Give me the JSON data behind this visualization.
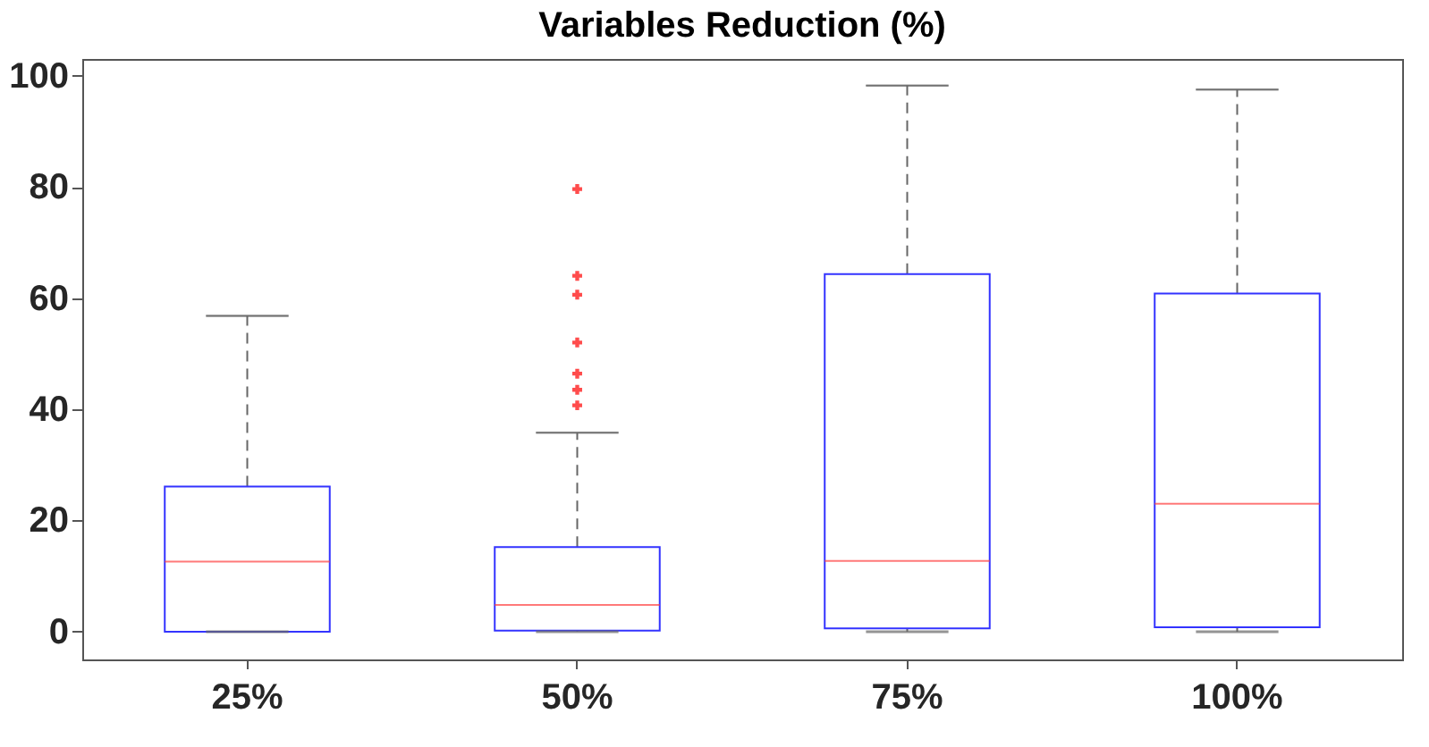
{
  "chart_data": {
    "type": "box",
    "title": "Variables Reduction (%)",
    "categories": [
      "25%",
      "50%",
      "75%",
      "100%"
    ],
    "boxes": [
      {
        "low": 0,
        "q1": 0,
        "median": 12.6,
        "q3": 26.1,
        "high": 56.8
      },
      {
        "low": 0,
        "q1": 0.2,
        "median": 4.8,
        "q3": 15.2,
        "high": 35.8,
        "outliers": [
          79.6,
          64,
          60.6,
          52,
          46.4,
          43.5,
          40.7
        ]
      },
      {
        "low": 0,
        "q1": 0.6,
        "median": 12.7,
        "q3": 64.3,
        "high": 98.2
      },
      {
        "low": 0,
        "q1": 0.8,
        "median": 23,
        "q3": 60.8,
        "high": 97.5
      }
    ],
    "ylim": [
      -5,
      103
    ],
    "yticks": [
      0,
      20,
      40,
      60,
      80,
      100
    ],
    "grid": false
  }
}
